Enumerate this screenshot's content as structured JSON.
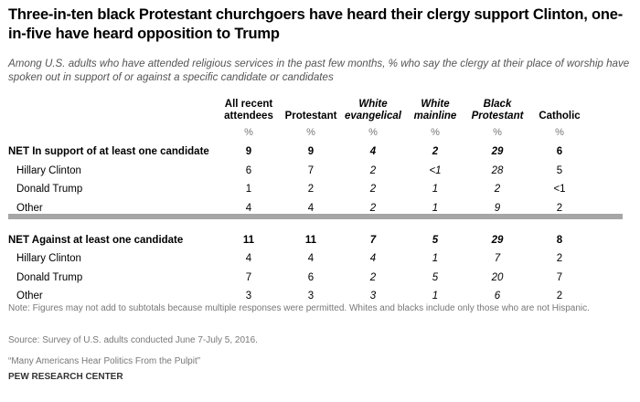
{
  "title": "Three-in-ten black Protestant churchgoers have heard their clergy support Clinton, one-in-five have heard opposition to Trump",
  "subtitle": "Among U.S. adults who have attended religious services in the past few months, % who say the clergy at their place of worship have spoken out in support of or against a specific candidate or candidates",
  "columns": [
    {
      "line1": "All recent",
      "line2": "attendees"
    },
    {
      "line1": "",
      "line2": "Protestant"
    },
    {
      "line1": "White",
      "line2": "evangelical"
    },
    {
      "line1": "White",
      "line2": "mainline"
    },
    {
      "line1": "Black",
      "line2": "Protestant"
    },
    {
      "line1": "",
      "line2": "Catholic"
    }
  ],
  "pct": "%",
  "rows": [
    {
      "label": "NET In support of at least one candidate",
      "values": [
        "9",
        "9",
        "4",
        "2",
        "29",
        "6"
      ],
      "net": true
    },
    {
      "label": "Hillary Clinton",
      "values": [
        "6",
        "7",
        "2",
        "<1",
        "28",
        "5"
      ]
    },
    {
      "label": "Donald Trump",
      "values": [
        "1",
        "2",
        "2",
        "1",
        "2",
        "<1"
      ]
    },
    {
      "label": "Other",
      "values": [
        "4",
        "4",
        "2",
        "1",
        "9",
        "2"
      ]
    },
    {
      "label": "NET Against at least one candidate",
      "values": [
        "11",
        "11",
        "7",
        "5",
        "29",
        "8"
      ],
      "net": true
    },
    {
      "label": "Hillary Clinton",
      "values": [
        "4",
        "4",
        "4",
        "1",
        "7",
        "2"
      ]
    },
    {
      "label": "Donald Trump",
      "values": [
        "7",
        "6",
        "2",
        "5",
        "20",
        "7"
      ]
    },
    {
      "label": "Other",
      "values": [
        "3",
        "3",
        "3",
        "1",
        "6",
        "2"
      ]
    }
  ],
  "note": "Note: Figures may not add to subtotals because multiple responses were permitted. Whites and blacks include only those who are not Hispanic.",
  "source": "Source: Survey of U.S. adults conducted June 7-July 5, 2016.",
  "report": "“Many Americans Hear Politics From the Pulpit”",
  "org": "PEW RESEARCH CENTER"
}
